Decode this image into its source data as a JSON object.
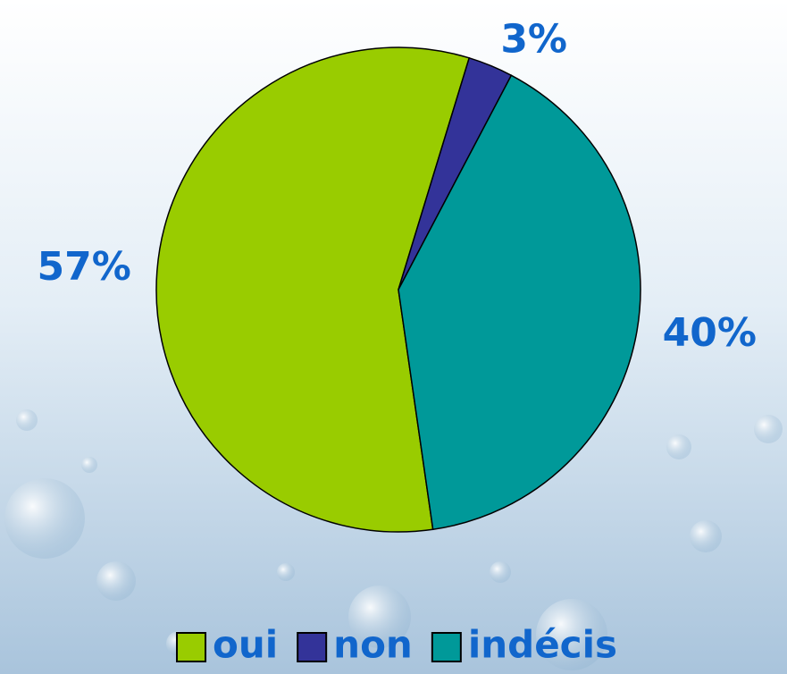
{
  "chart_data": {
    "type": "pie",
    "categories": [
      "oui",
      "non",
      "indécis"
    ],
    "values": [
      57,
      3,
      40
    ],
    "value_labels": [
      "57%",
      "3%",
      "40%"
    ],
    "colors": [
      "#99cc00",
      "#333399",
      "#009999"
    ],
    "legend": "bottom"
  }
}
